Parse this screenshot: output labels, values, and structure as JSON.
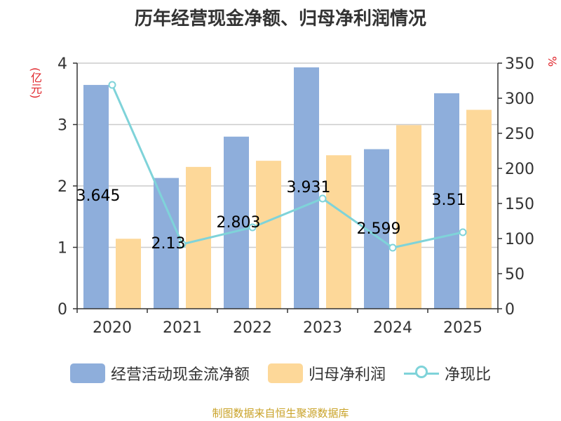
{
  "title": "历年经营现金净额、归母净利润情况",
  "units": {
    "left": "(亿元)",
    "right": "%"
  },
  "source": "制图数据来自恒生聚源数据库",
  "legend": {
    "bar1": "经营活动现金流净额",
    "bar2": "归母净利润",
    "line": "净现比"
  },
  "colors": {
    "bar1": "#8eaedb",
    "bar2": "#fdd899",
    "line": "#7fd3d9",
    "axis": "#333333",
    "grid": "#cccccc"
  },
  "chart_data": {
    "type": "bar",
    "categories": [
      "2020",
      "2021",
      "2022",
      "2023",
      "2024",
      "2025"
    ],
    "series": [
      {
        "name": "经营活动现金流净额",
        "type": "bar",
        "axis": "left",
        "values": [
          3.645,
          2.13,
          2.803,
          3.931,
          2.599,
          3.51
        ],
        "labels": [
          "3.645",
          "2.13",
          "2.803",
          "3.931",
          "2.599",
          "3.51"
        ]
      },
      {
        "name": "归母净利润",
        "type": "bar",
        "axis": "left",
        "values": [
          1.14,
          2.31,
          2.41,
          2.5,
          2.99,
          3.24
        ]
      },
      {
        "name": "净现比",
        "type": "line",
        "axis": "right",
        "values": [
          319,
          92,
          116,
          157,
          87,
          109
        ]
      }
    ],
    "y_left": {
      "min": 0,
      "max": 4,
      "ticks": [
        "0",
        "1",
        "2",
        "3",
        "4"
      ]
    },
    "y_right": {
      "min": 0,
      "max": 350,
      "ticks": [
        "0",
        "50",
        "100",
        "150",
        "200",
        "250",
        "300",
        "350"
      ]
    },
    "grid": true,
    "legend_position": "bottom"
  }
}
